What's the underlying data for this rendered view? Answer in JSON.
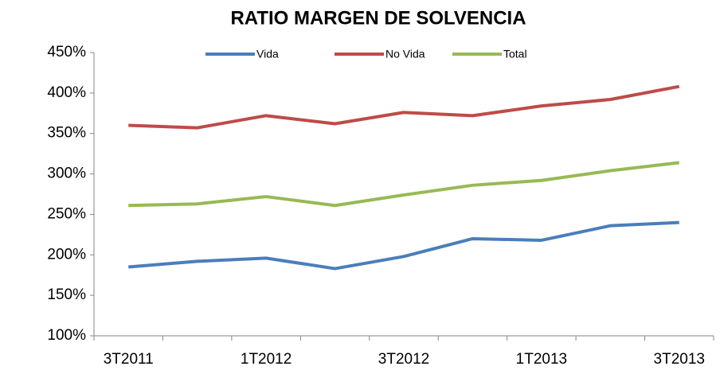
{
  "chart_data": {
    "type": "line",
    "title": "RATIO MARGEN DE SOLVENCIA",
    "categories": [
      "3T2011",
      null,
      "1T2012",
      null,
      "3T2012",
      null,
      "1T2013",
      null,
      "3T2013"
    ],
    "series": [
      {
        "name": "Vida",
        "color": "#4a7ebb",
        "values": [
          185,
          192,
          196,
          183,
          198,
          220,
          218,
          236,
          240
        ]
      },
      {
        "name": "No Vida",
        "color": "#be4b48",
        "values": [
          360,
          357,
          372,
          362,
          376,
          372,
          384,
          392,
          408
        ]
      },
      {
        "name": "Total",
        "color": "#98b954",
        "values": [
          261,
          263,
          272,
          261,
          274,
          286,
          292,
          304,
          314
        ]
      }
    ],
    "ylim": [
      100,
      450
    ],
    "yticks": [
      {
        "value": 100,
        "label": "100%"
      },
      {
        "value": 150,
        "label": "150%"
      },
      {
        "value": 200,
        "label": "200%"
      },
      {
        "value": 250,
        "label": "250%"
      },
      {
        "value": 300,
        "label": "300%"
      },
      {
        "value": 350,
        "label": "350%"
      },
      {
        "value": 400,
        "label": "400%"
      },
      {
        "value": 450,
        "label": "450%"
      }
    ],
    "grid": false,
    "legend": "top"
  }
}
